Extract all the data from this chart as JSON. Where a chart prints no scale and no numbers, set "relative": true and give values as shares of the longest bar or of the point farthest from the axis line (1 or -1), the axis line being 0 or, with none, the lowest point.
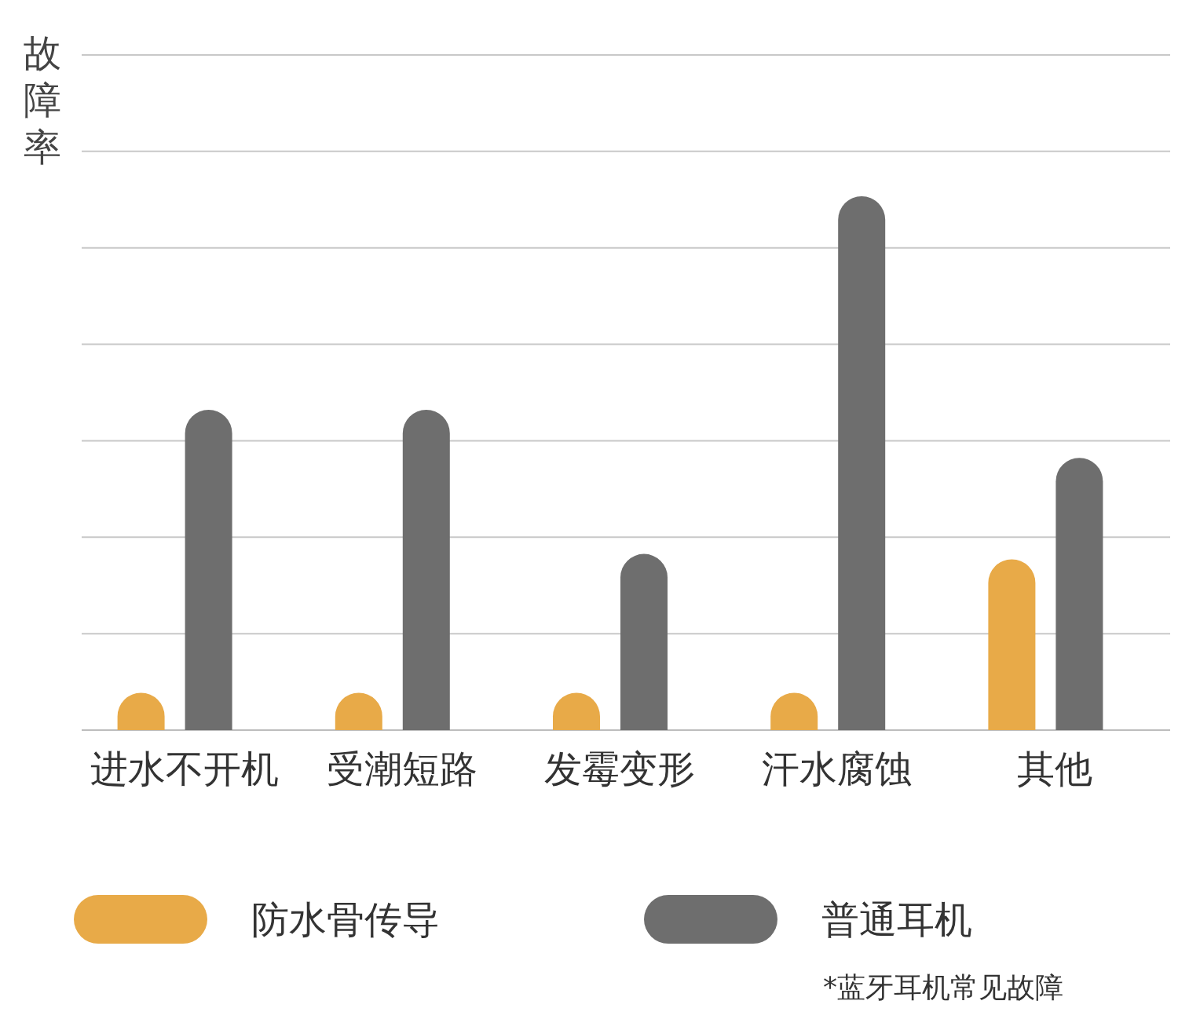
{
  "chart_data": {
    "type": "bar",
    "relative": true,
    "ylabel": "故障率",
    "categories": [
      "进水不开机",
      "受潮短路",
      "发霉变形",
      "汗水腐蚀",
      "其他"
    ],
    "series": [
      {
        "name": "防水骨传导",
        "color": "#e8aa48",
        "values": [
          0.07,
          0.07,
          0.07,
          0.07,
          0.32
        ]
      },
      {
        "name": "普通耳机",
        "color": "#6e6e6e",
        "values": [
          0.6,
          0.6,
          0.33,
          1,
          0.51
        ]
      }
    ],
    "grid": "y",
    "legend": "bottom",
    "annotations": [
      "*蓝牙耳机常见故障"
    ]
  }
}
